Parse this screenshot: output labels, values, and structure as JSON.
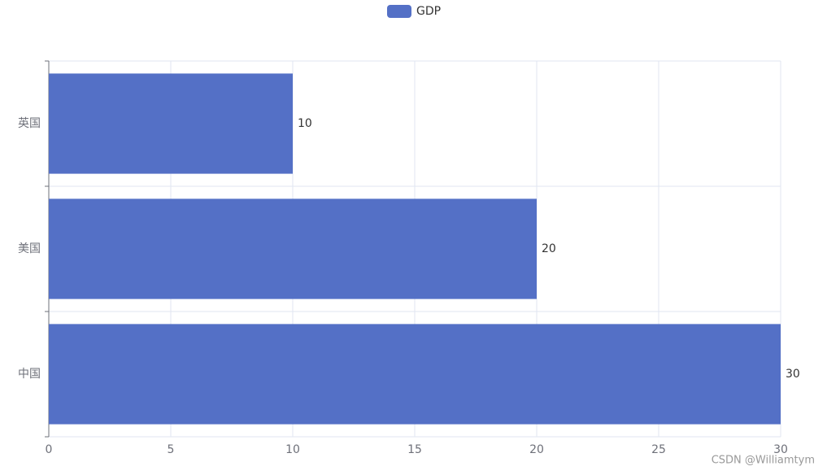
{
  "chart_data": {
    "type": "bar",
    "orientation": "horizontal",
    "categories": [
      "中国",
      "美国",
      "英国"
    ],
    "series": [
      {
        "name": "GDP",
        "color": "#5470c6",
        "values": [
          30,
          20,
          10
        ]
      }
    ],
    "xlim": [
      0,
      30
    ],
    "xticks": [
      0,
      5,
      10,
      15,
      20,
      25,
      30
    ],
    "grid": true,
    "legend": "top",
    "watermark": "CSDN @Williamtym"
  }
}
